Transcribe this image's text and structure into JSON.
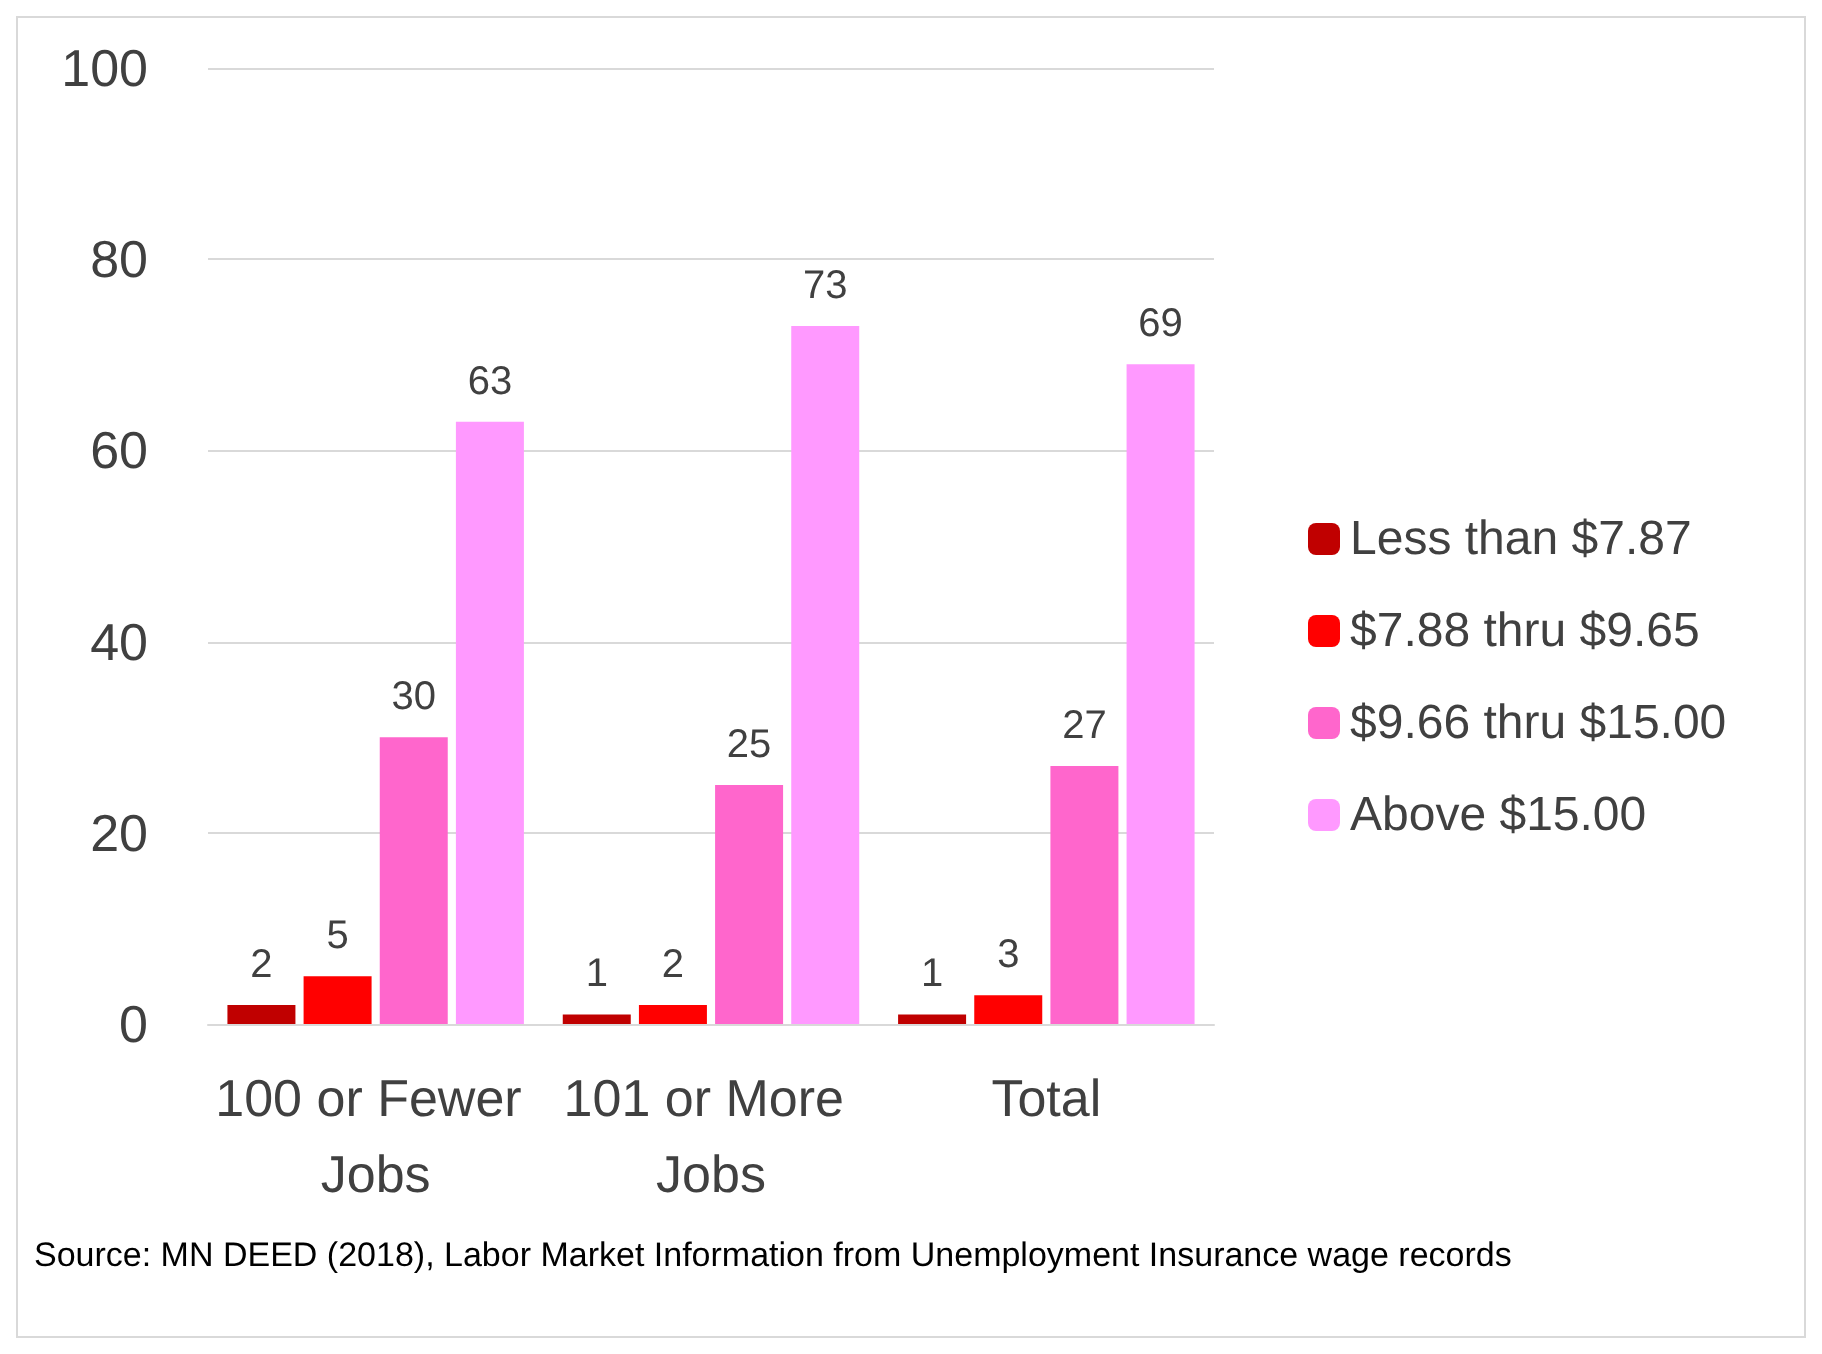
{
  "chart_data": {
    "type": "bar",
    "categories": [
      "100 or Fewer Jobs",
      "101 or More Jobs",
      "Total"
    ],
    "series": [
      {
        "name": "Less than $7.87",
        "color": "#c00000",
        "values": [
          2,
          1,
          1
        ]
      },
      {
        "name": "$7.88 thru $9.65",
        "color": "#ff0000",
        "values": [
          5,
          2,
          3
        ]
      },
      {
        "name": "$9.66 thru $15.00",
        "color": "#ff66cc",
        "values": [
          30,
          25,
          27
        ]
      },
      {
        "name": "Above $15.00",
        "color": "#ff99ff",
        "values": [
          63,
          73,
          69
        ]
      }
    ],
    "ylim": [
      0,
      100
    ],
    "yticks": [
      0,
      20,
      40,
      60,
      80,
      100
    ],
    "grid": "y",
    "legend": "right",
    "data_labels": true,
    "annotations": [
      "Source: MN DEED (2018), Labor Market Information from Unemployment Insurance wage records"
    ]
  }
}
